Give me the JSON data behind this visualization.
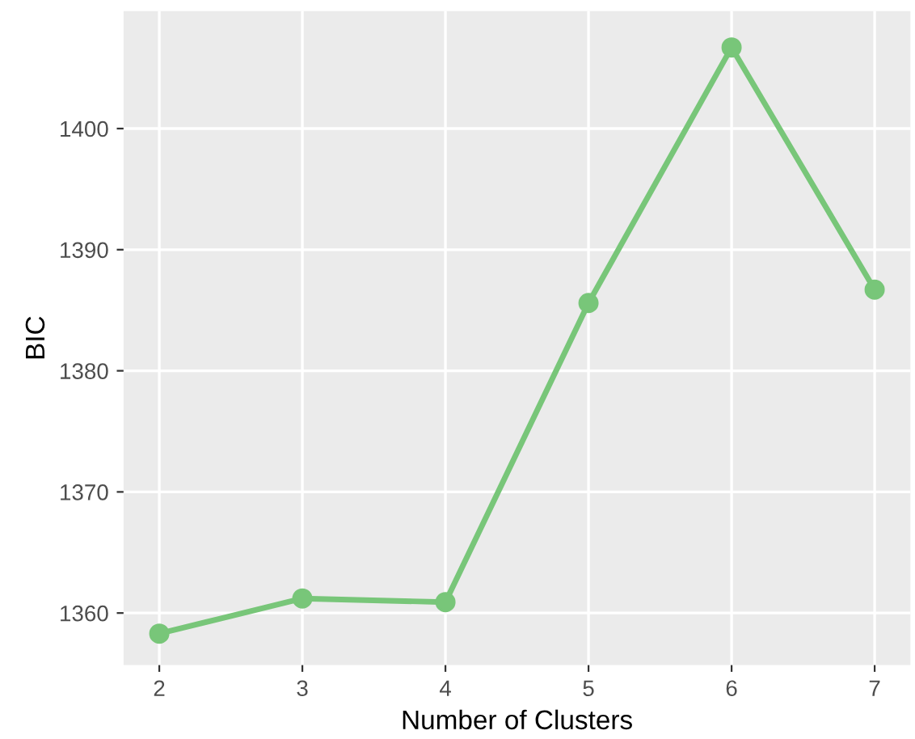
{
  "chart_data": {
    "type": "line",
    "xlabel": "Number of Clusters",
    "ylabel": "BIC",
    "x": [
      2,
      3,
      4,
      5,
      6,
      7
    ],
    "series": [
      {
        "color": "#78c679",
        "values": [
          1358.3,
          1361.2,
          1360.9,
          1385.6,
          1406.7,
          1386.7
        ]
      }
    ],
    "xlim": [
      1.75,
      7.25
    ],
    "ylim": [
      1355.7,
      1409.7
    ],
    "xticks": [
      2,
      3,
      4,
      5,
      6,
      7
    ],
    "yticks": [
      1360,
      1370,
      1380,
      1390,
      1400
    ],
    "grid": true,
    "marker": "circle",
    "line_style": "solid"
  }
}
